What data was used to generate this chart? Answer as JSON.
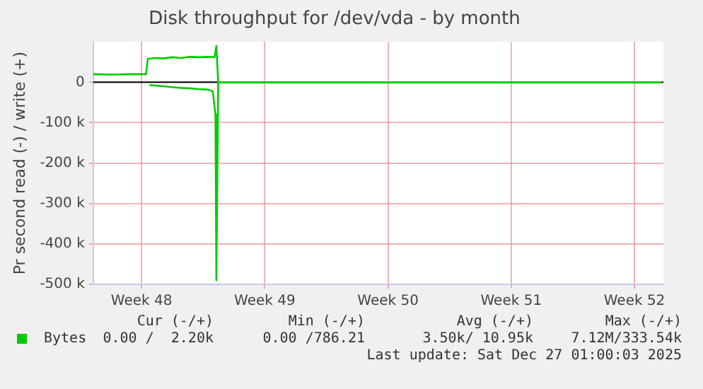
{
  "chart_data": {
    "type": "line",
    "title": "Disk throughput for /dev/vda - by month",
    "ylabel": "Pr second read (-) / write (+)",
    "series": [
      {
        "name": "Bytes",
        "color": "#00cc00",
        "x": [
          "2025-11-24T18:00",
          "2025-11-25T18:00",
          "2025-11-26T18:00",
          "2025-11-27T18:00",
          "2025-11-27T20:30",
          "2025-11-28T06:00",
          "2025-11-28T18:00",
          "2025-11-29T06:00",
          "2025-11-29T18:00",
          "2025-11-30T06:00",
          "2025-11-30T18:00",
          "2025-12-01T06:00",
          "2025-12-01T15:30",
          "2025-12-01T18:00",
          "2025-12-01T20:30",
          "2025-12-27T01:00"
        ],
        "values": [
          20000,
          19000,
          20000,
          20000,
          58000,
          60000,
          59000,
          62000,
          60000,
          63000,
          62000,
          63000,
          62000,
          90000,
          0,
          0
        ]
      },
      {
        "color": "#00cc00",
        "x": [
          "2025-11-27T23:00",
          "2025-11-28T18:00",
          "2025-11-29T06:00",
          "2025-11-29T18:00",
          "2025-11-30T06:00",
          "2025-11-30T18:00",
          "2025-12-01T06:00",
          "2025-12-01T13:00",
          "2025-12-01T16:45",
          "2025-12-01T18:00",
          "2025-12-01T20:30",
          "2025-12-27T01:00"
        ],
        "values": [
          -7000,
          -10000,
          -12000,
          -14000,
          -15000,
          -17000,
          -18000,
          -22000,
          -80000,
          -490000,
          0,
          0
        ]
      }
    ],
    "xlim": [
      "2025-11-24T18:00",
      "2025-12-27T03:30"
    ],
    "xticks": [
      {
        "value": "2025-11-27T12:00",
        "label": "Week 48"
      },
      {
        "value": "2025-12-04T12:00",
        "label": "Week 49"
      },
      {
        "value": "2025-12-11T12:00",
        "label": "Week 50"
      },
      {
        "value": "2025-12-18T12:00",
        "label": "Week 51"
      },
      {
        "value": "2025-12-25T12:00",
        "label": "Week 52"
      }
    ],
    "ylim": [
      -500000,
      100000
    ],
    "yticks": [
      {
        "value": -500000,
        "label": "-500 k"
      },
      {
        "value": -400000,
        "label": "-400 k"
      },
      {
        "value": -300000,
        "label": "-300 k"
      },
      {
        "value": -200000,
        "label": "-200 k"
      },
      {
        "value": -100000,
        "label": "-100 k"
      },
      0
    ],
    "ref_lines": [
      {
        "axis": "y",
        "value": 0,
        "color": "#000000"
      }
    ],
    "grid": true,
    "legend": "bottom left",
    "marker": "none",
    "line_style": "solid",
    "annotations": [
      "Cur (-/+)",
      "Min (-/+)",
      "Avg (-/+)",
      "Max (-/+)",
      "0.00 /  2.20k",
      "0.00 /786.21",
      "3.50k/ 10.95k",
      "7.12M/333.54k",
      "Last update: Sat Dec 27 01:00:03 2025"
    ]
  }
}
